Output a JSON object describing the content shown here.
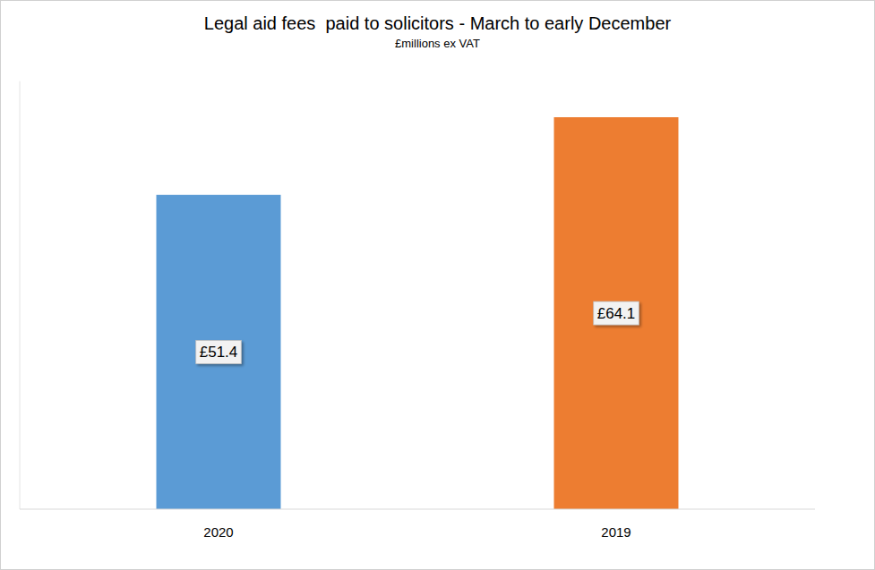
{
  "chart_data": {
    "type": "bar",
    "title": "Legal aid fees  paid to solicitors - March to early December",
    "subtitle": "£millions ex VAT",
    "categories": [
      "2020",
      "2019"
    ],
    "values": [
      51.4,
      64.1
    ],
    "value_labels": [
      "£51.4",
      "£64.1"
    ],
    "colors": [
      "#5b9bd5",
      "#ed7d31"
    ],
    "ylim": [
      0,
      70
    ],
    "data_labels": true,
    "tick_labels": "x",
    "grid": false
  }
}
